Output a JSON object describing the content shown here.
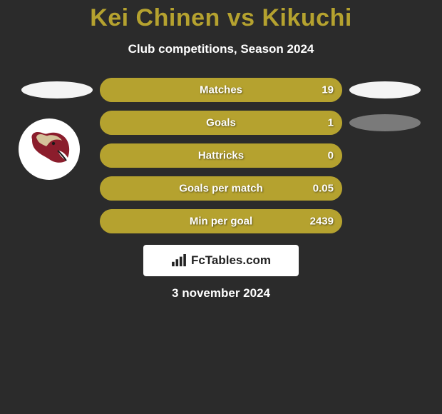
{
  "colors": {
    "background": "#2b2b2b",
    "accent": "#b5a22f",
    "bar_bg": "#b5a22f",
    "title_color": "#b5a22f",
    "text_white": "#ffffff",
    "oval_white": "#f4f4f4",
    "oval_gray": "#7a7a7a",
    "logo_primary": "#8b1d2c",
    "logo_secondary": "#d4c29a"
  },
  "header": {
    "title": "Kei Chinen vs Kikuchi",
    "subtitle": "Club competitions, Season 2024"
  },
  "stats": [
    {
      "label": "Matches",
      "value": "19",
      "fill_pct": 100,
      "left_oval": true,
      "right_oval": true,
      "right_oval_color": "#f4f4f4"
    },
    {
      "label": "Goals",
      "value": "1",
      "fill_pct": 100,
      "left_oval": false,
      "right_oval": true,
      "right_oval_color": "#7a7a7a"
    },
    {
      "label": "Hattricks",
      "value": "0",
      "fill_pct": 100,
      "left_oval": false,
      "right_oval": false
    },
    {
      "label": "Goals per match",
      "value": "0.05",
      "fill_pct": 100,
      "left_oval": false,
      "right_oval": false
    },
    {
      "label": "Min per goal",
      "value": "2439",
      "fill_pct": 100,
      "left_oval": false,
      "right_oval": false
    }
  ],
  "branding": {
    "text": "FcTables.com"
  },
  "footer": {
    "date": "3 november 2024"
  }
}
